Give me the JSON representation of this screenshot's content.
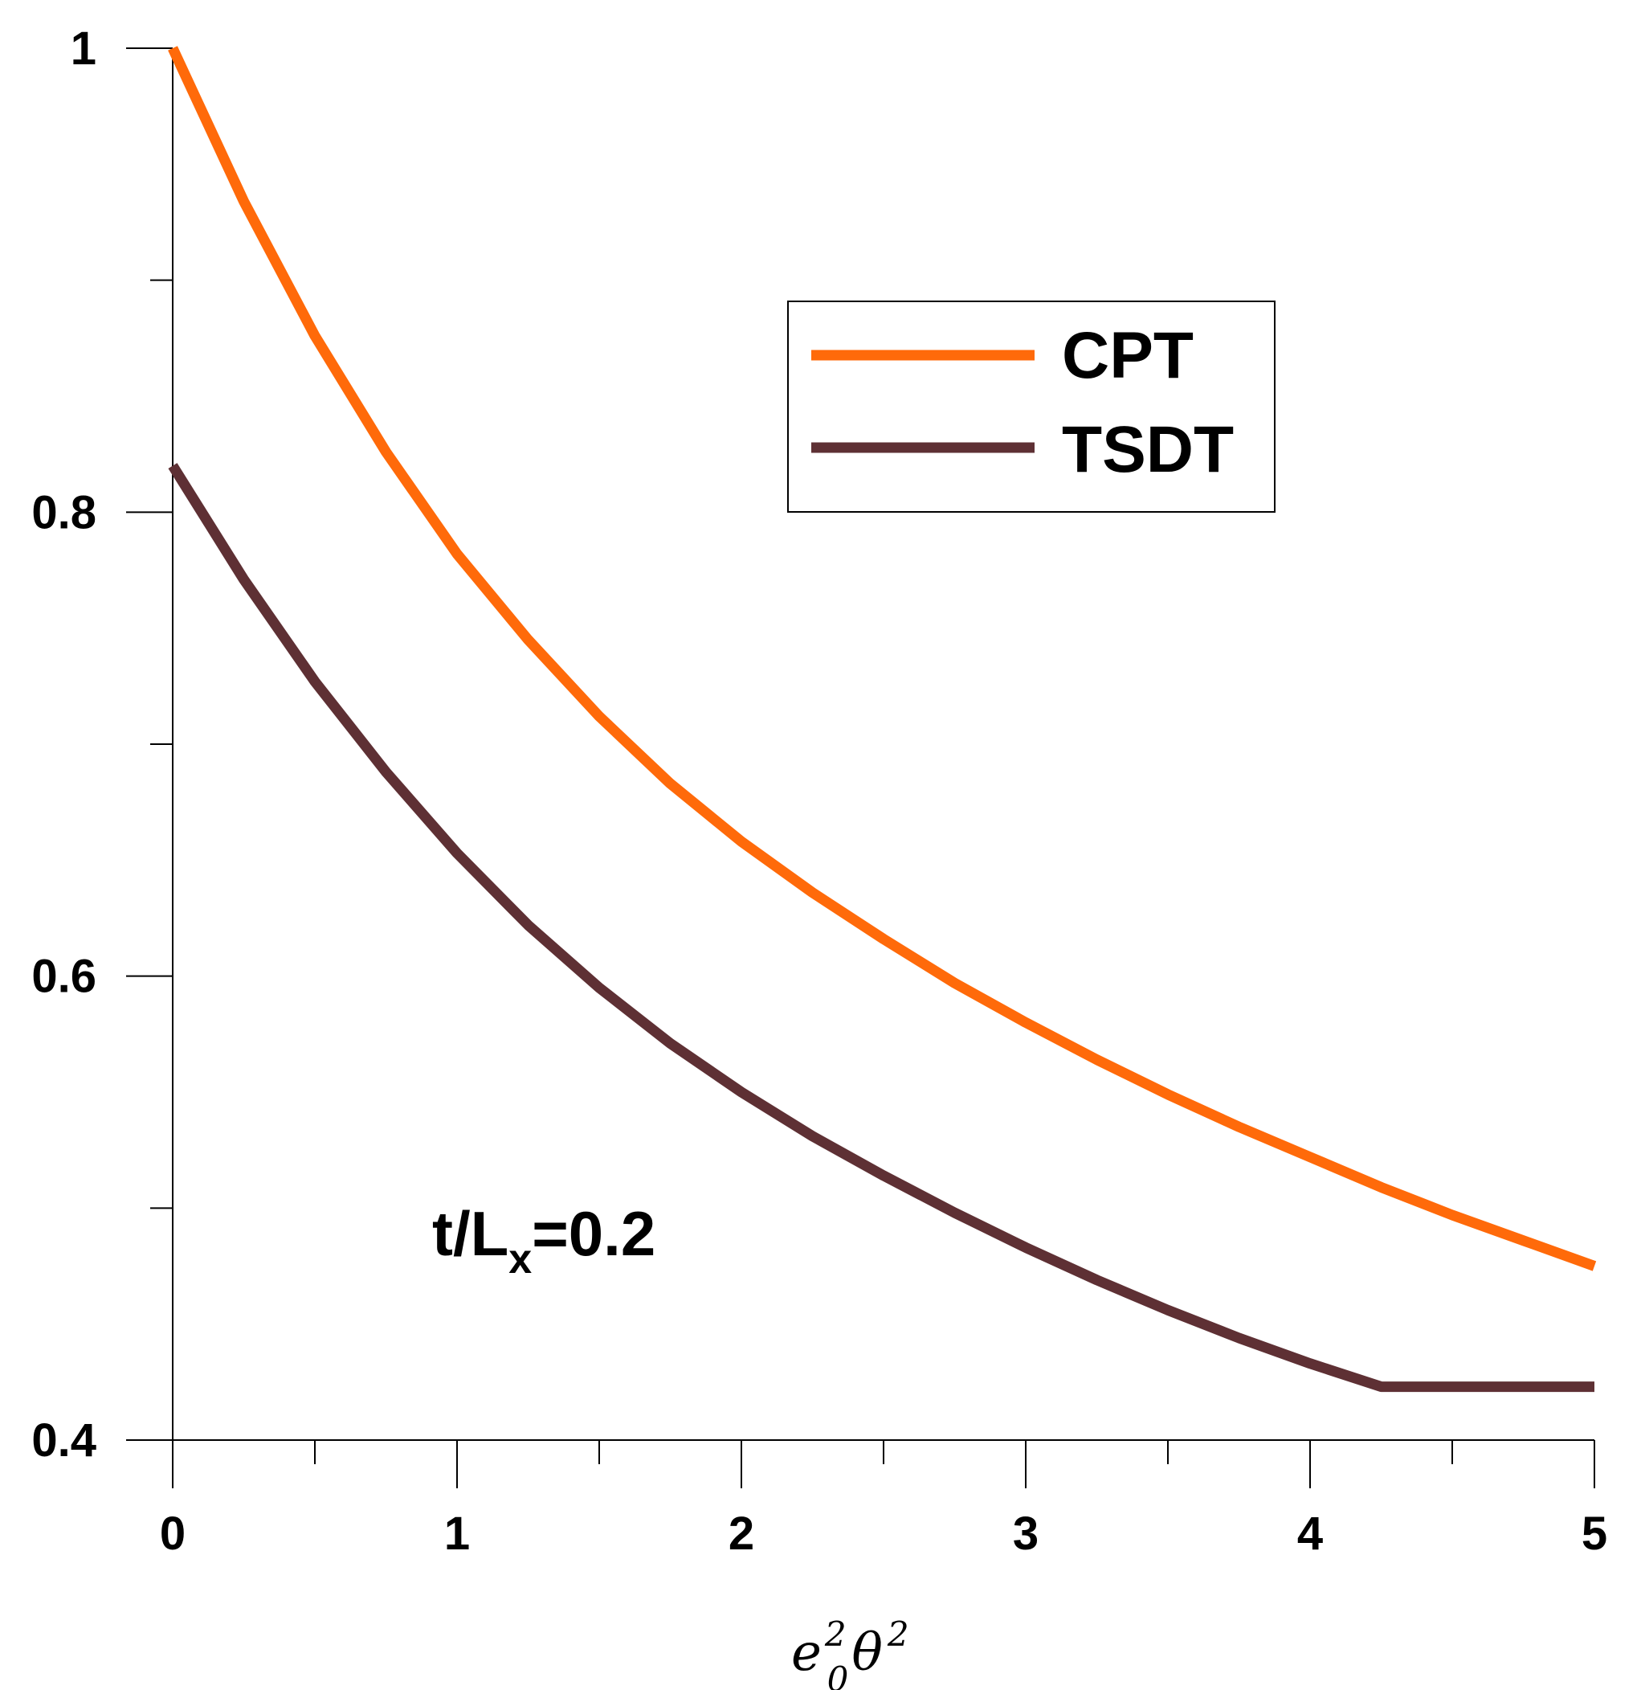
{
  "chart_data": {
    "type": "line",
    "title": "",
    "xlabel": {
      "base1": "e",
      "sup1": "2",
      "sub1": "0",
      "base2": "θ",
      "sup2": "2"
    },
    "ylabel": "",
    "xlim": [
      0,
      5
    ],
    "ylim": [
      0.4,
      1.0
    ],
    "x_ticks": [
      0,
      1,
      2,
      3,
      4,
      5
    ],
    "x_tick_labels": [
      "0",
      "1",
      "2",
      "3",
      "4",
      "5"
    ],
    "x_minor_ticks": [
      0.5,
      1.5,
      2.5,
      3.5,
      4.5
    ],
    "y_ticks": [
      0.4,
      0.6,
      0.8,
      1.0
    ],
    "y_tick_labels": [
      "0.4",
      "0.6",
      "0.8",
      "1"
    ],
    "y_minor_ticks": [
      0.5,
      0.7,
      0.9
    ],
    "grid": false,
    "legend_position": "top-right",
    "annotation": {
      "prefix": "t/L",
      "sub": "x",
      "suffix": "=0.2"
    },
    "x": [
      0,
      0.25,
      0.5,
      0.75,
      1,
      1.25,
      1.5,
      1.75,
      2,
      2.25,
      2.5,
      2.75,
      3,
      3.25,
      3.5,
      3.75,
      4,
      4.25,
      4.5,
      4.75,
      5
    ],
    "series": [
      {
        "name": "CPT",
        "color": "#ff6a0a",
        "values": [
          1.0,
          0.934,
          0.876,
          0.826,
          0.782,
          0.745,
          0.712,
          0.683,
          0.658,
          0.636,
          0.616,
          0.597,
          0.58,
          0.564,
          0.549,
          0.535,
          0.522,
          0.509,
          0.497,
          0.486,
          0.475
        ]
      },
      {
        "name": "TSDT",
        "color": "#5e3034",
        "values": [
          0.82,
          0.771,
          0.727,
          0.688,
          0.653,
          0.622,
          0.595,
          0.571,
          0.55,
          0.531,
          0.514,
          0.498,
          0.483,
          0.469,
          0.456,
          0.444,
          0.433,
          0.423,
          0.423,
          0.423,
          0.423
        ]
      }
    ]
  }
}
